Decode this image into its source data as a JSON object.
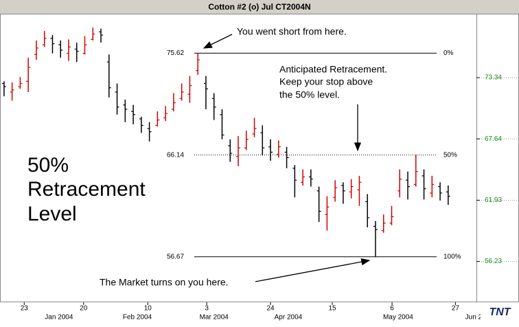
{
  "chart_data": {
    "type": "ohlc",
    "title": "Cotton #2 (o) Jul CT2004N",
    "x": [
      1,
      3,
      5,
      7,
      9,
      11,
      13,
      15,
      17,
      19,
      21,
      23,
      25,
      27,
      29,
      31,
      33,
      35,
      37,
      39,
      41,
      43,
      45,
      47,
      49,
      51,
      53,
      55,
      57,
      59,
      61,
      63,
      65,
      67,
      69,
      71,
      73,
      75,
      77,
      79,
      81,
      83,
      85,
      87,
      89,
      91,
      93,
      95,
      97,
      99,
      101,
      103,
      105,
      107,
      109,
      111
    ],
    "open": [
      72.8,
      72.0,
      72.5,
      73.0,
      75.5,
      76.4,
      77.0,
      76.4,
      75.6,
      76.0,
      75.6,
      76.9,
      77.6,
      74.8,
      72.0,
      70.8,
      70.2,
      69.5,
      68.6,
      68.9,
      69.6,
      70.4,
      71.4,
      71.8,
      74.0,
      72.8,
      71.4,
      69.9,
      67.0,
      66.0,
      66.8,
      68.1,
      68.2,
      66.9,
      66.2,
      66.4,
      64.9,
      63.6,
      64.1,
      62.8,
      60.6,
      62.2,
      63.3,
      62.7,
      62.9,
      61.8,
      59.5,
      59.1,
      59.8,
      62.8,
      63.8,
      63.4,
      64.2,
      62.6,
      63.2,
      62.7
    ],
    "high": [
      73.0,
      72.9,
      73.4,
      75.2,
      76.8,
      77.7,
      77.3,
      76.8,
      76.9,
      76.6,
      77.2,
      78.0,
      77.9,
      75.5,
      72.8,
      71.3,
      70.8,
      69.7,
      69.2,
      70.2,
      70.7,
      71.9,
      72.8,
      73.5,
      75.62,
      73.5,
      71.9,
      70.4,
      67.6,
      67.9,
      68.4,
      69.6,
      68.9,
      67.6,
      67.5,
      66.9,
      65.2,
      64.8,
      64.8,
      63.2,
      62.3,
      63.8,
      63.6,
      63.9,
      64.2,
      62.5,
      60.0,
      60.6,
      61.4,
      64.8,
      64.6,
      66.14,
      64.8,
      64.2,
      63.6,
      63.3
    ],
    "low": [
      71.6,
      71.2,
      72.3,
      72.0,
      75.0,
      76.2,
      75.6,
      75.2,
      74.9,
      74.8,
      75.5,
      76.8,
      76.6,
      71.5,
      69.9,
      69.2,
      69.0,
      68.2,
      67.4,
      68.8,
      69.3,
      70.2,
      71.2,
      71.0,
      73.6,
      70.4,
      69.4,
      67.6,
      65.5,
      65.1,
      66.6,
      67.8,
      66.1,
      65.6,
      65.9,
      64.9,
      62.2,
      63.3,
      63.2,
      59.9,
      59.1,
      61.8,
      61.6,
      62.1,
      61.4,
      59.4,
      56.67,
      58.9,
      59.6,
      62.2,
      62.0,
      63.2,
      62.0,
      62.2,
      61.9,
      61.5
    ],
    "close": [
      72.5,
      72.2,
      72.8,
      74.3,
      76.1,
      77.0,
      76.5,
      75.9,
      76.2,
      75.8,
      76.4,
      77.4,
      77.3,
      72.4,
      70.6,
      70.4,
      69.9,
      68.9,
      68.3,
      69.4,
      70.0,
      71.0,
      72.0,
      72.6,
      75.0,
      72.3,
      70.6,
      68.0,
      66.3,
      66.8,
      67.6,
      68.6,
      66.8,
      66.4,
      66.9,
      65.9,
      63.8,
      64.1,
      63.9,
      60.9,
      61.3,
      63.1,
      62.8,
      63.2,
      63.6,
      60.3,
      59.2,
      59.8,
      60.4,
      63.9,
      63.2,
      64.6,
      63.0,
      63.4,
      62.6,
      62.3
    ],
    "up_color": "#cc0000",
    "down_color": "#000000",
    "xlim": [
      0,
      118
    ],
    "xticks": [
      {
        "value": 6,
        "label": "23"
      },
      {
        "value": 20.7,
        "label": "20"
      },
      {
        "value": 36.6,
        "label": "10"
      },
      {
        "value": 51.2,
        "label": "3"
      },
      {
        "value": 67,
        "label": "24"
      },
      {
        "value": 82.3,
        "label": "15"
      },
      {
        "value": 97.1,
        "label": "6"
      },
      {
        "value": 112.8,
        "label": "27"
      }
    ],
    "month_ticks": [
      {
        "value": 14.6,
        "label": "Jan 2004"
      },
      {
        "value": 34,
        "label": "Feb 2004"
      },
      {
        "value": 53,
        "label": "Mar 2004"
      },
      {
        "value": 71.4,
        "label": "Apr 2004"
      },
      {
        "value": 98.6,
        "label": "May 2004"
      },
      {
        "value": 117.3,
        "label": "Jun 2"
      }
    ],
    "ylim": [
      52.43,
      79.29
    ],
    "yticks": [
      56.23,
      61.93,
      67.64,
      73.34
    ],
    "ytick_color": "#1e8a1e",
    "grid": true,
    "levels": [
      {
        "value": 75.62,
        "pct": "0%",
        "dashed": false
      },
      {
        "value": 66.14,
        "pct": "50%",
        "dashed": true
      },
      {
        "value": 56.67,
        "pct": "100%",
        "dashed": false
      }
    ],
    "annotations": {
      "short": "You went short from here.",
      "retracement": [
        "Anticipated Retracement.",
        "Keep your stop above",
        "the 50% level."
      ],
      "turns": "The Market turns on you here.",
      "big": [
        "50%",
        "Retracement",
        "Level"
      ]
    },
    "logo": "TNT"
  }
}
